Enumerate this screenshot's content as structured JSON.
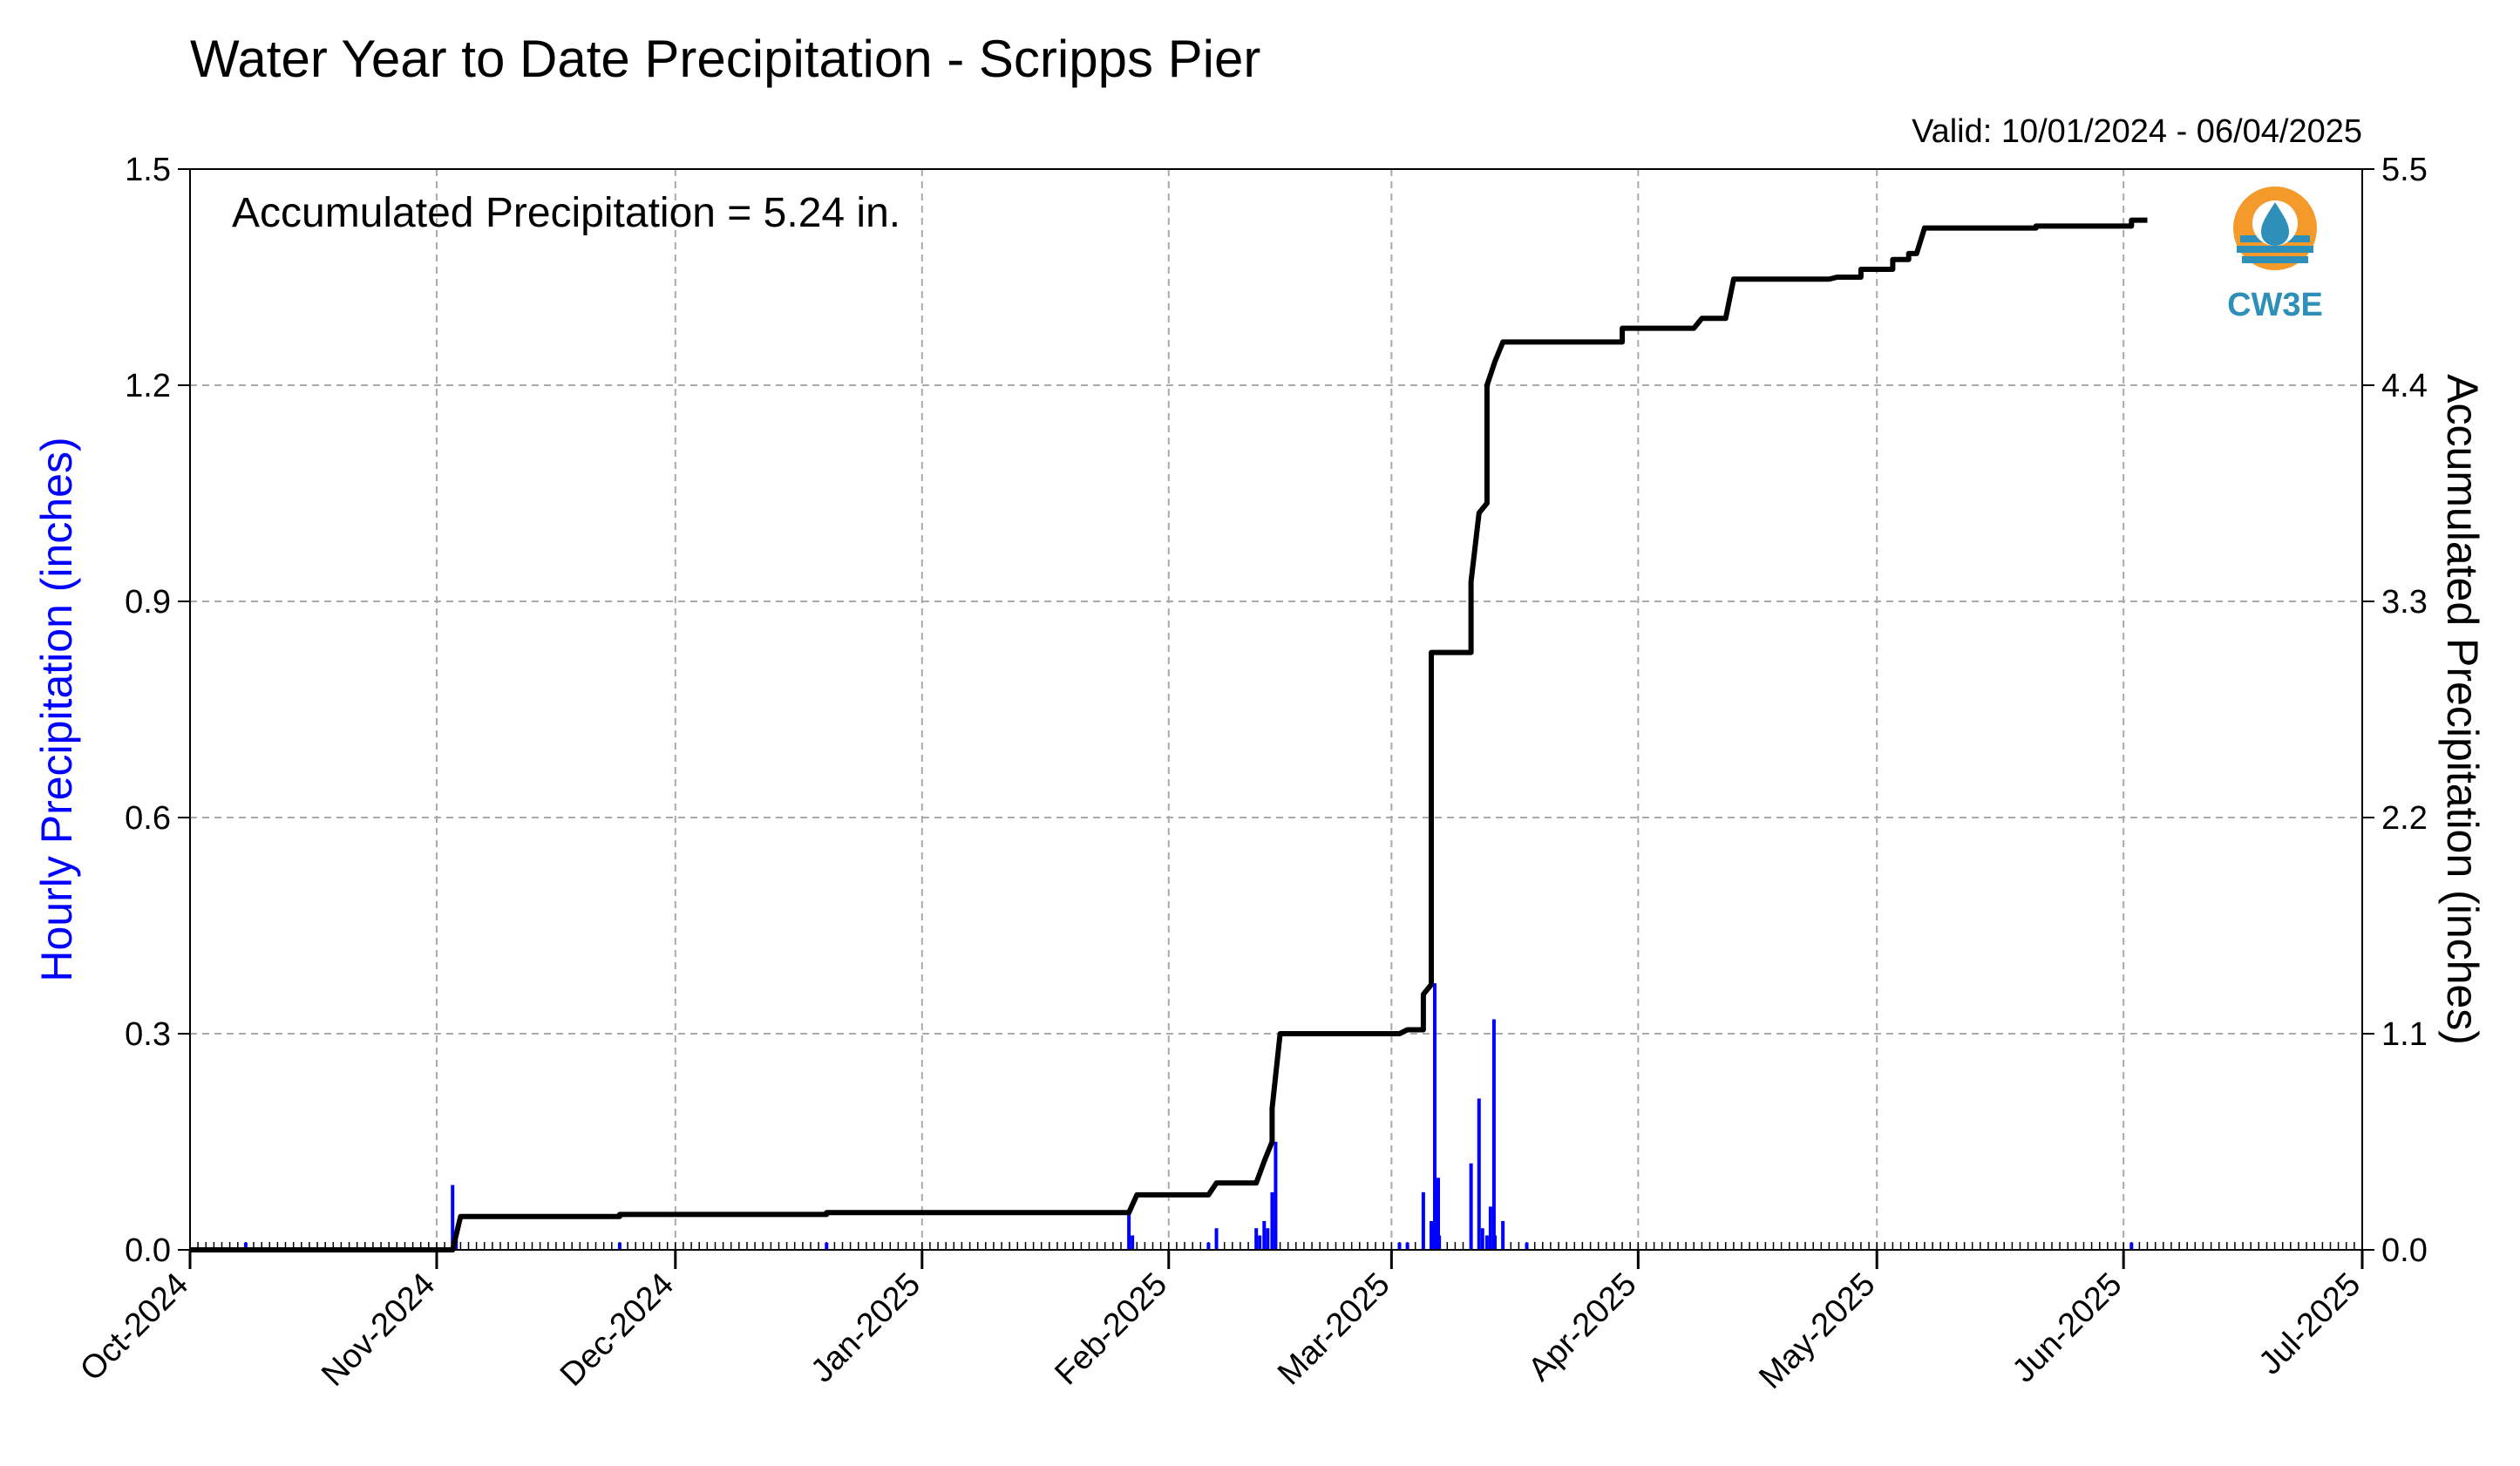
{
  "title": "Water Year to Date Precipitation - Scripps Pier",
  "valid_label": "Valid: 10/01/2024 - 06/04/2025",
  "annotation": "Accumulated Precipitation = 5.24 in.",
  "logo": {
    "text": "CW3E",
    "icon": "water-drop-logo-icon",
    "orange": "#f39a2b",
    "blue": "#2e8fb8"
  },
  "colors": {
    "hourly": "#0000ff",
    "accumulated": "#000000",
    "grid": "#aaaaaa"
  },
  "chart_data": {
    "type": "bar+line",
    "title": "Water Year to Date Precipitation - Scripps Pier",
    "xlabel": "",
    "x_tick_labels": [
      "Oct-2024",
      "Nov-2024",
      "Dec-2024",
      "Jan-2025",
      "Feb-2025",
      "Mar-2025",
      "Apr-2025",
      "May-2025",
      "Jun-2025",
      "Jul-2025"
    ],
    "xlim": [
      "2024-10-01",
      "2025-07-01"
    ],
    "grid": true,
    "left_axis": {
      "label": "Hourly Precipitation (inches)",
      "ylim": [
        0,
        1.5
      ],
      "ticks": [
        "0.0",
        "0.3",
        "0.6",
        "0.9",
        "1.2",
        "1.5"
      ]
    },
    "right_axis": {
      "label": "Accumulated Precipitation (inches)",
      "ylim": [
        0,
        5.5
      ],
      "ticks": [
        "0.0",
        "1.1",
        "2.2",
        "3.3",
        "4.4",
        "5.5"
      ]
    },
    "series": [
      {
        "name": "Hourly Precipitation (inches)",
        "type": "bar",
        "axis": "left",
        "points": [
          [
            "2024-10-08",
            0.01
          ],
          [
            "2024-11-03",
            0.09
          ],
          [
            "2024-11-03",
            0.02
          ],
          [
            "2024-11-24",
            0.01
          ],
          [
            "2024-12-20",
            0.01
          ],
          [
            "2025-01-27",
            0.05
          ],
          [
            "2025-01-27",
            0.02
          ],
          [
            "2025-02-06",
            0.01
          ],
          [
            "2025-02-07",
            0.03
          ],
          [
            "2025-02-12",
            0.03
          ],
          [
            "2025-02-12",
            0.02
          ],
          [
            "2025-02-13",
            0.04
          ],
          [
            "2025-02-13",
            0.03
          ],
          [
            "2025-02-14",
            0.08
          ],
          [
            "2025-02-14",
            0.15
          ],
          [
            "2025-03-02",
            0.01
          ],
          [
            "2025-03-03",
            0.01
          ],
          [
            "2025-03-05",
            0.08
          ],
          [
            "2025-03-06",
            0.04
          ],
          [
            "2025-03-06",
            0.37
          ],
          [
            "2025-03-06",
            0.1
          ],
          [
            "2025-03-07",
            0.02
          ],
          [
            "2025-03-11",
            0.12
          ],
          [
            "2025-03-12",
            0.21
          ],
          [
            "2025-03-12",
            0.03
          ],
          [
            "2025-03-13",
            0.02
          ],
          [
            "2025-03-13",
            0.06
          ],
          [
            "2025-03-13",
            0.32
          ],
          [
            "2025-03-14",
            0.02
          ],
          [
            "2025-03-15",
            0.04
          ],
          [
            "2025-03-18",
            0.01
          ],
          [
            "2025-06-02",
            0.01
          ]
        ]
      },
      {
        "name": "Accumulated Precipitation (inches)",
        "type": "line",
        "axis": "right",
        "points": [
          [
            "2024-10-01",
            0.0
          ],
          [
            "2024-11-03",
            0.0
          ],
          [
            "2024-11-04",
            0.17
          ],
          [
            "2024-11-24",
            0.17
          ],
          [
            "2024-11-24",
            0.18
          ],
          [
            "2024-12-20",
            0.18
          ],
          [
            "2024-12-20",
            0.19
          ],
          [
            "2025-01-27",
            0.19
          ],
          [
            "2025-01-28",
            0.28
          ],
          [
            "2025-02-06",
            0.28
          ],
          [
            "2025-02-07",
            0.34
          ],
          [
            "2025-02-12",
            0.34
          ],
          [
            "2025-02-13",
            0.45
          ],
          [
            "2025-02-14",
            0.55
          ],
          [
            "2025-02-14",
            0.72
          ],
          [
            "2025-02-15",
            1.1
          ],
          [
            "2025-03-02",
            1.1
          ],
          [
            "2025-03-03",
            1.12
          ],
          [
            "2025-03-05",
            1.12
          ],
          [
            "2025-03-05",
            1.3
          ],
          [
            "2025-03-06",
            1.35
          ],
          [
            "2025-03-06",
            3.04
          ],
          [
            "2025-03-11",
            3.04
          ],
          [
            "2025-03-11",
            3.4
          ],
          [
            "2025-03-12",
            3.75
          ],
          [
            "2025-03-13",
            3.8
          ],
          [
            "2025-03-13",
            4.4
          ],
          [
            "2025-03-14",
            4.52
          ],
          [
            "2025-03-15",
            4.62
          ],
          [
            "2025-03-30",
            4.62
          ],
          [
            "2025-03-30",
            4.69
          ],
          [
            "2025-04-08",
            4.69
          ],
          [
            "2025-04-09",
            4.74
          ],
          [
            "2025-04-12",
            4.74
          ],
          [
            "2025-04-13",
            4.94
          ],
          [
            "2025-04-25",
            4.94
          ],
          [
            "2025-04-26",
            4.95
          ],
          [
            "2025-04-29",
            4.95
          ],
          [
            "2025-04-29",
            4.99
          ],
          [
            "2025-05-03",
            4.99
          ],
          [
            "2025-05-03",
            5.04
          ],
          [
            "2025-05-05",
            5.04
          ],
          [
            "2025-05-05",
            5.07
          ],
          [
            "2025-05-06",
            5.07
          ],
          [
            "2025-05-07",
            5.2
          ],
          [
            "2025-05-21",
            5.2
          ],
          [
            "2025-05-21",
            5.21
          ],
          [
            "2025-06-02",
            5.21
          ],
          [
            "2025-06-02",
            5.24
          ],
          [
            "2025-06-04",
            5.24
          ]
        ]
      }
    ]
  }
}
